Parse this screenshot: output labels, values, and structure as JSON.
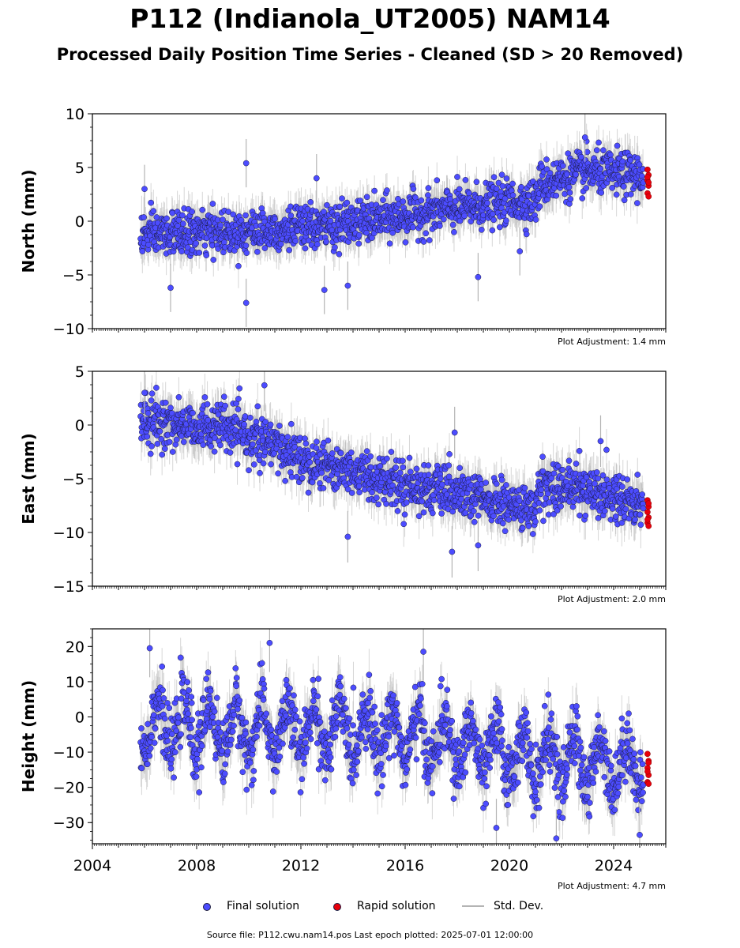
{
  "header": {
    "title": "P112 (Indianola_UT2005) NAM14",
    "subtitle": "Processed Daily Position Time Series - Cleaned (SD > 20 Removed)"
  },
  "colors": {
    "final": "#4c4cff",
    "rapid": "#e8000b",
    "stddev": "#b4b4b4",
    "marker_edge": "#1a1a40"
  },
  "chart_data": [
    {
      "type": "scatter",
      "ylabel": "North (mm)",
      "ylim": [
        -10,
        10
      ],
      "yticks": [
        -10,
        -5,
        0,
        5,
        10
      ],
      "ytick_labels": [
        "−10",
        "−5",
        "0",
        "5",
        "10"
      ],
      "xlim": [
        2004,
        2026
      ],
      "adjustment": "Plot Adjustment: 1.4 mm",
      "trend_knots": [
        [
          2005.8,
          -1.3
        ],
        [
          2009.0,
          -1.0
        ],
        [
          2013.0,
          -0.5
        ],
        [
          2016.0,
          0.5
        ],
        [
          2020.0,
          1.8
        ],
        [
          2021.0,
          1.8
        ],
        [
          2021.2,
          3.5
        ],
        [
          2023.0,
          4.6
        ],
        [
          2025.3,
          4.2
        ]
      ],
      "noise_sd": 1.0,
      "std_dev_mm": 1.5,
      "outliers": [
        [
          2006.0,
          3.0
        ],
        [
          2007.0,
          -6.2
        ],
        [
          2009.9,
          5.4
        ],
        [
          2009.9,
          -7.6
        ],
        [
          2012.6,
          4.0
        ],
        [
          2012.9,
          -6.4
        ],
        [
          2013.8,
          -6.0
        ],
        [
          2018.8,
          -5.2
        ],
        [
          2020.4,
          -2.8
        ],
        [
          2022.9,
          7.8
        ]
      ],
      "rapid_values": [
        4.8,
        4.3,
        3.8,
        3.3,
        2.6,
        2.3,
        4.1,
        3.6
      ]
    },
    {
      "type": "scatter",
      "ylabel": "East (mm)",
      "ylim": [
        -15,
        5
      ],
      "yticks": [
        -15,
        -10,
        -5,
        0,
        5
      ],
      "ytick_labels": [
        "−15",
        "−10",
        "−5",
        "0",
        "5"
      ],
      "xlim": [
        2004,
        2026
      ],
      "adjustment": "Plot Adjustment: 2.0 mm",
      "trend_knots": [
        [
          2005.8,
          0.3
        ],
        [
          2009.0,
          -0.2
        ],
        [
          2012.0,
          -3.0
        ],
        [
          2015.0,
          -5.0
        ],
        [
          2018.0,
          -6.5
        ],
        [
          2020.0,
          -7.5
        ],
        [
          2021.0,
          -8.0
        ],
        [
          2021.2,
          -5.5
        ],
        [
          2023.0,
          -6.0
        ],
        [
          2025.3,
          -7.5
        ]
      ],
      "noise_sd": 1.1,
      "std_dev_mm": 1.6,
      "outliers": [
        [
          2006.0,
          3.0
        ],
        [
          2010.6,
          3.7
        ],
        [
          2013.8,
          -10.4
        ],
        [
          2017.9,
          -0.7
        ],
        [
          2017.8,
          -11.8
        ],
        [
          2018.8,
          -11.2
        ],
        [
          2023.5,
          -1.5
        ]
      ],
      "rapid_values": [
        -7.0,
        -7.6,
        -8.1,
        -8.6,
        -9.1,
        -7.3,
        -8.8,
        -9.4
      ]
    },
    {
      "type": "scatter",
      "ylabel": "Height (mm)",
      "ylim": [
        -36,
        25
      ],
      "yticks": [
        -30,
        -20,
        -10,
        0,
        10,
        20
      ],
      "ytick_labels": [
        "−30",
        "−20",
        "−10",
        "0",
        "10",
        "20"
      ],
      "xlim": [
        2004,
        2026
      ],
      "xticks": [
        2004,
        2008,
        2012,
        2016,
        2020,
        2024
      ],
      "xtick_labels": [
        "2004",
        "2008",
        "2012",
        "2016",
        "2020",
        "2024"
      ],
      "adjustment": "Plot Adjustment: 4.7 mm",
      "trend_knots": [
        [
          2005.8,
          -2.0
        ],
        [
          2010.0,
          -4.0
        ],
        [
          2015.0,
          -4.0
        ],
        [
          2018.0,
          -8.0
        ],
        [
          2021.0,
          -12.0
        ],
        [
          2025.3,
          -14.0
        ]
      ],
      "seasonal_amplitude": 7.0,
      "noise_sd": 4.5,
      "std_dev_mm": 5.5,
      "outliers": [
        [
          2006.2,
          19.5
        ],
        [
          2010.8,
          21.0
        ],
        [
          2016.7,
          18.5
        ],
        [
          2019.5,
          -31.5
        ],
        [
          2021.8,
          -34.5
        ],
        [
          2025.0,
          -33.5
        ]
      ],
      "rapid_values": [
        -10.5,
        -12.5,
        -14.5,
        -16.5,
        -18.5,
        -19.0,
        -15.5,
        -13.0
      ]
    }
  ],
  "legend": {
    "final_label": "Final solution",
    "rapid_label": "Rapid solution",
    "stddev_label": "Std. Dev."
  },
  "footer": {
    "source": "Source file: P112.cwu.nam14.pos  Last epoch plotted: 2025-07-01 12:00:00"
  }
}
